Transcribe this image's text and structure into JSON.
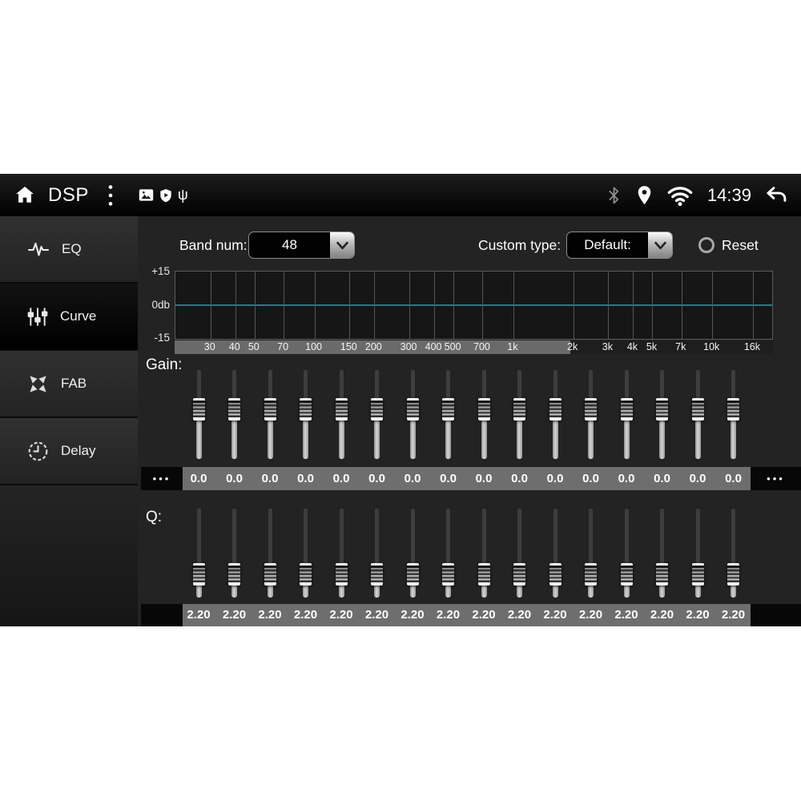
{
  "status_bar": {
    "title": "DSP",
    "time": "14:39",
    "left_icons": [
      "home-icon",
      "overflow-menu-icon",
      "gallery-icon",
      "shield-icon",
      "usb-icon"
    ],
    "right_icons": [
      "bluetooth-icon",
      "location-icon",
      "wifi-icon",
      "back-icon"
    ]
  },
  "sidebar": {
    "items": [
      {
        "label": "EQ",
        "icon": "eq-wave-icon",
        "selected": false
      },
      {
        "label": "Curve",
        "icon": "curve-sliders-icon",
        "selected": true
      },
      {
        "label": "FAB",
        "icon": "fab-arrows-icon",
        "selected": false
      },
      {
        "label": "Delay",
        "icon": "delay-clock-icon",
        "selected": false
      }
    ]
  },
  "controls": {
    "band_num_label": "Band num:",
    "band_num_value": "48",
    "custom_type_label": "Custom type:",
    "custom_type_value": "Default:",
    "reset_label": "Reset"
  },
  "chart_data": {
    "type": "line",
    "title": "EQ frequency response curve",
    "x_scale": "log",
    "x_range_hz": [
      20,
      20000
    ],
    "x_ticks": [
      {
        "label": "30",
        "hz": 30
      },
      {
        "label": "40",
        "hz": 40
      },
      {
        "label": "50",
        "hz": 50
      },
      {
        "label": "70",
        "hz": 70
      },
      {
        "label": "100",
        "hz": 100
      },
      {
        "label": "150",
        "hz": 150
      },
      {
        "label": "200",
        "hz": 200
      },
      {
        "label": "300",
        "hz": 300
      },
      {
        "label": "400",
        "hz": 400
      },
      {
        "label": "500",
        "hz": 500
      },
      {
        "label": "700",
        "hz": 700
      },
      {
        "label": "1k",
        "hz": 1000
      },
      {
        "label": "2k",
        "hz": 2000
      },
      {
        "label": "3k",
        "hz": 3000
      },
      {
        "label": "4k",
        "hz": 4000
      },
      {
        "label": "5k",
        "hz": 5000
      },
      {
        "label": "7k",
        "hz": 7000
      },
      {
        "label": "10k",
        "hz": 10000
      },
      {
        "label": "16k",
        "hz": 16000
      }
    ],
    "y_ticks": [
      "+15",
      "0db",
      "-15"
    ],
    "ylim": [
      -15,
      15
    ],
    "series": [
      {
        "name": "eq-response",
        "y_db_at_ticks": [
          0,
          0,
          0,
          0,
          0,
          0,
          0,
          0,
          0,
          0,
          0,
          0,
          0,
          0,
          0,
          0,
          0,
          0,
          0
        ]
      }
    ],
    "line_color": "#2e7984",
    "grid": true
  },
  "gain": {
    "label": "Gain:",
    "more_left": "•••",
    "more_right": "•••",
    "values": [
      "0.0",
      "0.0",
      "0.0",
      "0.0",
      "0.0",
      "0.0",
      "0.0",
      "0.0",
      "0.0",
      "0.0",
      "0.0",
      "0.0",
      "0.0",
      "0.0",
      "0.0",
      "0.0"
    ]
  },
  "q": {
    "label": "Q:",
    "values": [
      "2.20",
      "2.20",
      "2.20",
      "2.20",
      "2.20",
      "2.20",
      "2.20",
      "2.20",
      "2.20",
      "2.20",
      "2.20",
      "2.20",
      "2.20",
      "2.20",
      "2.20",
      "2.20"
    ]
  }
}
